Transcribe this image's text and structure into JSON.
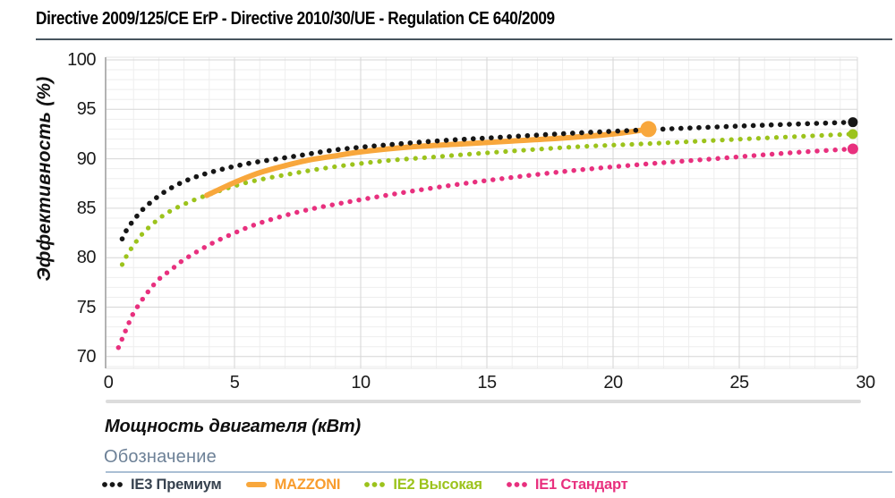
{
  "chart_data": {
    "type": "line",
    "title": "Directive 2009/125/CE ErP - Directive 2010/30/UE - Regulation CE 640/2009",
    "xlabel": "Мощность двигателя (кВт)",
    "ylabel": "Эффективность (%)",
    "xlim": [
      0,
      30
    ],
    "ylim": [
      70,
      100
    ],
    "xticks": [
      0,
      5,
      10,
      15,
      20,
      25,
      30
    ],
    "yticks": [
      70,
      75,
      80,
      85,
      90,
      95,
      100
    ],
    "grid": {
      "minor_step": 1,
      "major_step": 5,
      "minor_color": "#eeeeee",
      "major_color": "#d6d6d6"
    },
    "axis_line_color": "#b3b3b3",
    "legend": {
      "title": "Обозначение",
      "position": "bottom"
    },
    "series": [
      {
        "name": "IE3 Премиум",
        "slug": "ie3-premium",
        "style": "dotted",
        "color": "#161616",
        "label_color": "#37424f",
        "line_width": 5.6,
        "end_dot_r": 5.5,
        "points": [
          [
            0.55,
            81.9
          ],
          [
            0.75,
            82.9
          ],
          [
            1.1,
            84.1
          ],
          [
            1.5,
            85.2
          ],
          [
            2.2,
            86.6
          ],
          [
            3,
            87.7
          ],
          [
            4,
            88.6
          ],
          [
            5.5,
            89.5
          ],
          [
            7.5,
            90.3
          ],
          [
            9,
            90.9
          ],
          [
            11,
            91.4
          ],
          [
            13,
            91.8
          ],
          [
            15,
            92.1
          ],
          [
            18.5,
            92.6
          ],
          [
            22,
            93.0
          ],
          [
            26,
            93.4
          ],
          [
            29.5,
            93.7
          ]
        ]
      },
      {
        "name": "MAZZONI",
        "slug": "mazzoni",
        "style": "solid",
        "color": "#f8a73c",
        "label_color": "#f89c2d",
        "line_width": 6,
        "end_dot_r": 9,
        "points": [
          [
            3.9,
            86.3
          ],
          [
            5,
            87.6
          ],
          [
            6,
            88.6
          ],
          [
            7,
            89.3
          ],
          [
            8,
            89.9
          ],
          [
            9,
            90.3
          ],
          [
            10,
            90.7
          ],
          [
            12,
            91.2
          ],
          [
            14,
            91.5
          ],
          [
            16,
            91.8
          ],
          [
            18,
            92.1
          ],
          [
            20,
            92.5
          ],
          [
            21.4,
            93.0
          ]
        ]
      },
      {
        "name": "IE2 Высокая",
        "slug": "ie2-high",
        "style": "dotted",
        "color": "#9cc31c",
        "label_color": "#9cc31c",
        "line_width": 5.2,
        "end_dot_r": 5.5,
        "points": [
          [
            0.55,
            79.3
          ],
          [
            0.75,
            80.3
          ],
          [
            1.1,
            81.6
          ],
          [
            1.5,
            82.8
          ],
          [
            2.2,
            84.3
          ],
          [
            3,
            85.4
          ],
          [
            4,
            86.4
          ],
          [
            5.5,
            87.6
          ],
          [
            7.5,
            88.6
          ],
          [
            9,
            89.2
          ],
          [
            11,
            89.8
          ],
          [
            13,
            90.2
          ],
          [
            15,
            90.6
          ],
          [
            18.5,
            91.2
          ],
          [
            22,
            91.6
          ],
          [
            26,
            92.1
          ],
          [
            29.5,
            92.5
          ]
        ]
      },
      {
        "name": "IE1 Стандарт",
        "slug": "ie1-standard",
        "style": "dotted",
        "color": "#e8307e",
        "label_color": "#e8307e",
        "line_width": 5.4,
        "end_dot_r": 6,
        "points": [
          [
            0.4,
            70.9
          ],
          [
            0.55,
            71.8
          ],
          [
            0.75,
            73.0
          ],
          [
            1,
            74.4
          ],
          [
            1.5,
            76.3
          ],
          [
            2,
            77.8
          ],
          [
            2.5,
            78.8
          ],
          [
            3,
            79.8
          ],
          [
            4,
            81.3
          ],
          [
            5,
            82.5
          ],
          [
            6,
            83.5
          ],
          [
            7.5,
            84.6
          ],
          [
            9,
            85.4
          ],
          [
            11,
            86.3
          ],
          [
            13,
            87.1
          ],
          [
            15,
            87.8
          ],
          [
            18,
            88.7
          ],
          [
            21,
            89.4
          ],
          [
            24,
            90.0
          ],
          [
            27,
            90.6
          ],
          [
            29.5,
            91.0
          ]
        ]
      }
    ]
  }
}
